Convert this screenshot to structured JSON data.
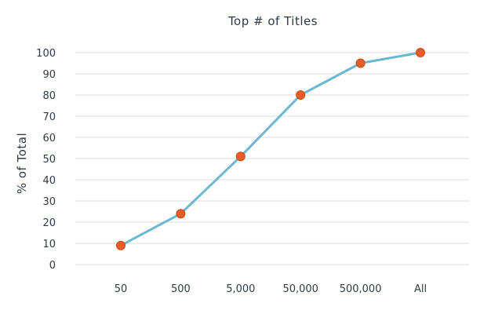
{
  "chart_data": {
    "type": "line",
    "title": "Top # of Titles",
    "xlabel": "",
    "ylabel": "% of Total",
    "categories": [
      "50",
      "500",
      "5,000",
      "50,000",
      "500,000",
      "All"
    ],
    "series": [
      {
        "values": [
          9,
          24,
          51,
          80,
          95,
          100
        ]
      }
    ],
    "ylim": [
      0,
      100
    ],
    "yticks": [
      "0",
      "10",
      "20",
      "30",
      "40",
      "50",
      "60",
      "70",
      "80",
      "90",
      "100"
    ],
    "grid": true,
    "legend": "none"
  },
  "colors": {
    "line": "#6cb8d0",
    "marker": "#e85c28",
    "grid": "#d9dde1",
    "text": "#2f3a44"
  }
}
